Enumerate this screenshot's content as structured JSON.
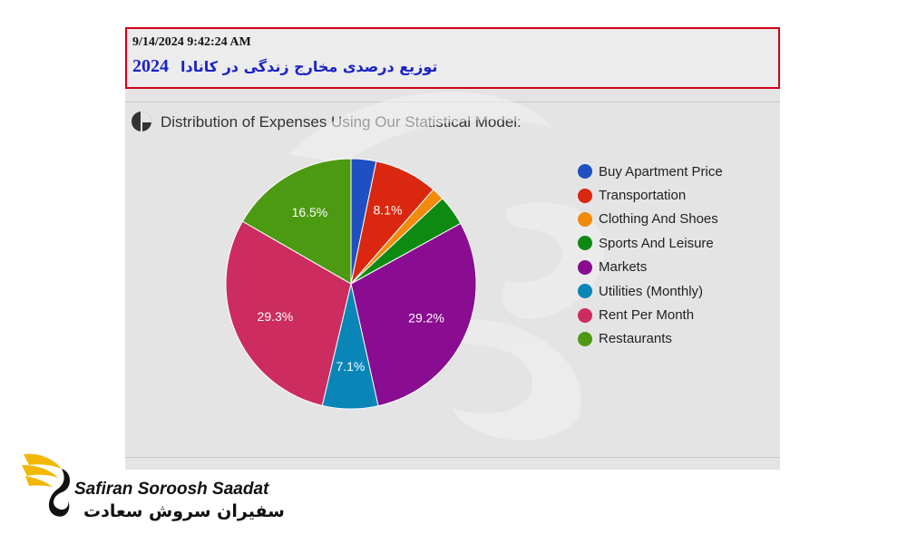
{
  "header": {
    "timestamp": "9/14/2024 9:42:24 AM",
    "title_year": "2024",
    "title_fa": "توزیع درصدی مخارج زندگی در کانادا"
  },
  "section": {
    "title": "Distribution of Expenses Using Our Statistical Model:",
    "icon": "pie-chart-icon"
  },
  "chart_data": {
    "type": "pie",
    "title": "Distribution of Expenses Using Our Statistical Model:",
    "legend_position": "right",
    "slices": [
      {
        "label": "Buy Apartment Price",
        "value": 3.2,
        "color": "#1f4fc1",
        "value_label": ""
      },
      {
        "label": "Transportation",
        "value": 8.1,
        "color": "#d9280f",
        "value_label": "8.1%"
      },
      {
        "label": "Clothing And Shoes",
        "value": 1.6,
        "color": "#f28a0c",
        "value_label": ""
      },
      {
        "label": "Sports And Leisure",
        "value": 3.9,
        "color": "#0e8a13",
        "value_label": ""
      },
      {
        "label": "Markets",
        "value": 29.2,
        "color": "#8a0c91",
        "value_label": "29.2%"
      },
      {
        "label": "Utilities (Monthly)",
        "value": 7.1,
        "color": "#0a85b8",
        "value_label": "7.1%"
      },
      {
        "label": "Rent Per Month",
        "value": 29.3,
        "color": "#cc2c5f",
        "value_label": "29.3%"
      },
      {
        "label": "Restaurants",
        "value": 16.5,
        "color": "#4c9a12",
        "value_label": "16.5%"
      }
    ]
  },
  "brand": {
    "name_en": "Safiran Soroosh Saadat",
    "name_fa": "سفیران سروش سعادت",
    "accent_color": "#f2b705"
  }
}
